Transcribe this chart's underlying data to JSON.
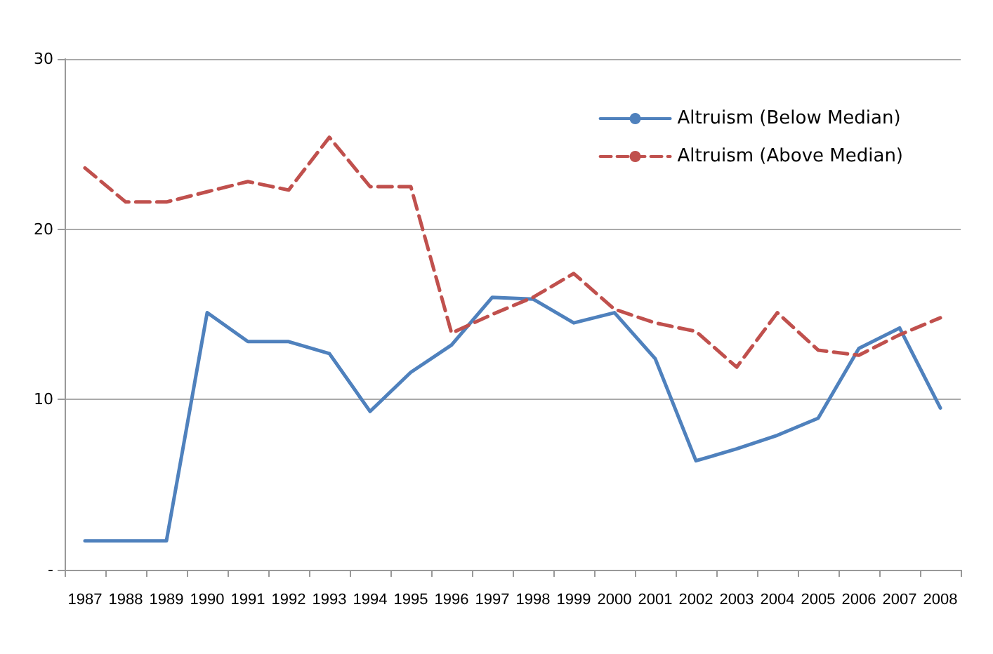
{
  "chart_data": {
    "type": "line",
    "categories": [
      "1987",
      "1988",
      "1989",
      "1990",
      "1991",
      "1992",
      "1993",
      "1994",
      "1995",
      "1996",
      "1997",
      "1998",
      "1999",
      "2000",
      "2001",
      "2002",
      "2003",
      "2004",
      "2005",
      "2006",
      "2007",
      "2008"
    ],
    "series": [
      {
        "name": "Altruism (Below Median)",
        "color": "#4f81bd",
        "line_style": "solid",
        "values": [
          1.7,
          1.7,
          1.7,
          15.1,
          13.4,
          13.4,
          12.7,
          9.3,
          11.6,
          13.2,
          16.0,
          15.9,
          14.5,
          15.1,
          12.4,
          6.4,
          7.1,
          7.9,
          8.9,
          13.0,
          14.2,
          9.5
        ]
      },
      {
        "name": "Altruism (Above Median)",
        "color": "#c0504d",
        "line_style": "dashed",
        "values": [
          23.6,
          21.6,
          21.6,
          22.2,
          22.8,
          22.3,
          25.4,
          22.5,
          22.5,
          13.9,
          15.0,
          16.0,
          17.4,
          15.3,
          14.5,
          14.0,
          11.9,
          15.1,
          12.9,
          12.6,
          13.8,
          14.8
        ]
      }
    ],
    "ylim": [
      0,
      30
    ],
    "yticks": [
      {
        "value": 0,
        "label": "-"
      },
      10,
      20,
      30
    ],
    "grid": "y",
    "legend": "top right",
    "marker": "none"
  }
}
